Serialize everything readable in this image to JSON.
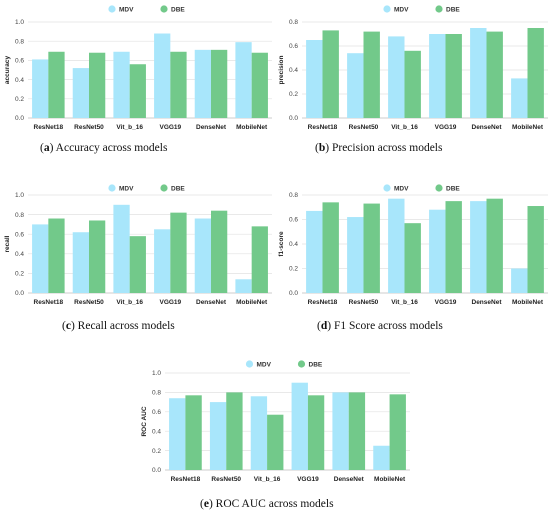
{
  "colors": {
    "mdv": "#a8e6fb",
    "dbe": "#72c98a",
    "grid": "#e2e2e2",
    "axis": "#bbbbbb"
  },
  "chart_data": [
    {
      "type": "bar",
      "caption_letter": "a",
      "caption_text": " Accuracy across models",
      "ylabel": "accuracy",
      "ylim": [
        0,
        1.0
      ],
      "yticks": [
        "0.0",
        "0.2",
        "0.4",
        "0.6",
        "0.8",
        "1.0"
      ],
      "categories": [
        "ResNet18",
        "ResNet50",
        "Vit_b_16",
        "VGG19",
        "DenseNet",
        "MobileNet"
      ],
      "legend": "top-center",
      "series": [
        {
          "name": "MDV",
          "color_key": "mdv",
          "values": [
            0.61,
            0.52,
            0.69,
            0.88,
            0.71,
            0.79
          ]
        },
        {
          "name": "DBE",
          "color_key": "dbe",
          "values": [
            0.69,
            0.68,
            0.56,
            0.69,
            0.71,
            0.68
          ]
        }
      ]
    },
    {
      "type": "bar",
      "caption_letter": "b",
      "caption_text": " Precision across models",
      "ylabel": "precision",
      "ylim": [
        0,
        0.8
      ],
      "yticks": [
        "0.0",
        "0.2",
        "0.4",
        "0.6",
        "0.8"
      ],
      "categories": [
        "ResNet18",
        "ResNet50",
        "Vit_b_16",
        "VGG19",
        "DenseNet",
        "MobileNet"
      ],
      "legend": "top-center",
      "series": [
        {
          "name": "MDV",
          "color_key": "mdv",
          "values": [
            0.65,
            0.54,
            0.68,
            0.7,
            0.75,
            0.33
          ]
        },
        {
          "name": "DBE",
          "color_key": "dbe",
          "values": [
            0.73,
            0.72,
            0.56,
            0.7,
            0.72,
            0.75
          ]
        }
      ]
    },
    {
      "type": "bar",
      "caption_letter": "c",
      "caption_text": " Recall across models",
      "ylabel": "recall",
      "ylim": [
        0,
        1.0
      ],
      "yticks": [
        "0.0",
        "0.2",
        "0.4",
        "0.6",
        "0.8",
        "1.0"
      ],
      "categories": [
        "ResNet18",
        "ResNet50",
        "Vit_b_16",
        "VGG19",
        "DenseNet",
        "MobileNet"
      ],
      "legend": "top-center",
      "series": [
        {
          "name": "MDV",
          "color_key": "mdv",
          "values": [
            0.7,
            0.62,
            0.9,
            0.65,
            0.76,
            0.14
          ]
        },
        {
          "name": "DBE",
          "color_key": "dbe",
          "values": [
            0.76,
            0.74,
            0.58,
            0.82,
            0.84,
            0.68
          ]
        }
      ]
    },
    {
      "type": "bar",
      "caption_letter": "d",
      "caption_text": " F1 Score across models",
      "ylabel": "f1-score",
      "ylim": [
        0,
        0.8
      ],
      "yticks": [
        "0.0",
        "0.2",
        "0.4",
        "0.6",
        "0.8"
      ],
      "categories": [
        "ResNet18",
        "ResNet50",
        "Vit_b_16",
        "VGG19",
        "DenseNet",
        "MobileNet"
      ],
      "legend": "top-center",
      "series": [
        {
          "name": "MDV",
          "color_key": "mdv",
          "values": [
            0.67,
            0.62,
            0.77,
            0.68,
            0.75,
            0.2
          ]
        },
        {
          "name": "DBE",
          "color_key": "dbe",
          "values": [
            0.74,
            0.73,
            0.57,
            0.75,
            0.77,
            0.71
          ]
        }
      ]
    },
    {
      "type": "bar",
      "caption_letter": "e",
      "caption_text": " ROC AUC across models",
      "ylabel": "ROC AUC",
      "ylim": [
        0,
        1.0
      ],
      "yticks": [
        "0.0",
        "0.2",
        "0.4",
        "0.6",
        "0.8",
        "1.0"
      ],
      "categories": [
        "ResNet18",
        "ResNet50",
        "Vit_b_16",
        "VGG19",
        "DenseNet",
        "MobileNet"
      ],
      "legend": "top-center",
      "series": [
        {
          "name": "MDV",
          "color_key": "mdv",
          "values": [
            0.74,
            0.7,
            0.76,
            0.9,
            0.8,
            0.25
          ]
        },
        {
          "name": "DBE",
          "color_key": "dbe",
          "values": [
            0.77,
            0.8,
            0.57,
            0.77,
            0.8,
            0.78
          ]
        }
      ]
    }
  ]
}
